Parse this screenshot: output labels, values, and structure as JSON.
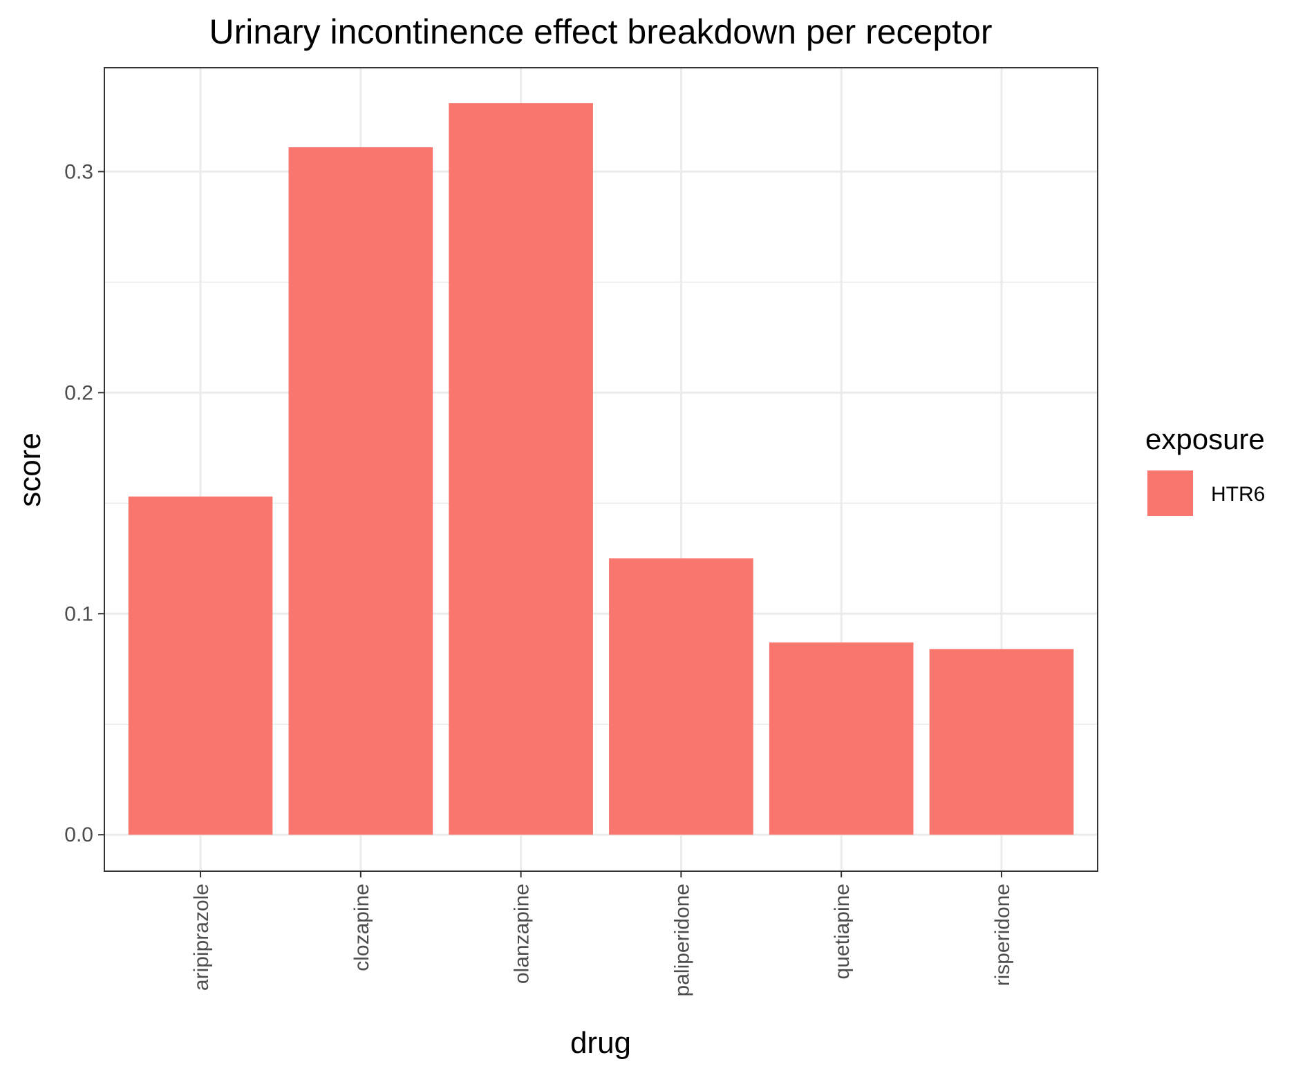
{
  "chart_data": {
    "type": "bar",
    "title": "Urinary incontinence effect breakdown per receptor",
    "xlabel": "drug",
    "ylabel": "score",
    "categories": [
      "aripiprazole",
      "clozapine",
      "olanzapine",
      "paliperidone",
      "quetiapine",
      "risperidone"
    ],
    "series": [
      {
        "name": "HTR6",
        "values": [
          0.153,
          0.311,
          0.331,
          0.125,
          0.087,
          0.084
        ]
      }
    ],
    "yticks": [
      "0.0",
      "0.1",
      "0.2",
      "0.3"
    ],
    "ylim": [
      -0.0165,
      0.347
    ],
    "grid": true,
    "legend": {
      "title": "exposure",
      "position": "right"
    },
    "colors": {
      "HTR6": "#F8766D"
    }
  }
}
